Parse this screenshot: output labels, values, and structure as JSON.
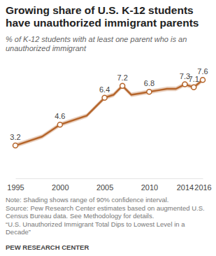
{
  "chart_data": {
    "type": "line",
    "title": "Growing share of U.S. K-12 students have unauthorized immigrant parents",
    "subtitle": "% of K-12 students with at least one parent who is an unauthorized immigrant",
    "notes": [
      "Note: Shading shows range of 90% confidence interval.",
      "Source: Pew Research Center estimates based on augmented U.S. Census Bureau data. See Methodology for details.",
      "“U.S. Unauthorized Immigrant Total Dips to Lowest Level in a Decade”"
    ],
    "credit": "PEW RESEARCH CENTER",
    "x": [
      1995,
      1998,
      2000,
      2003,
      2005,
      2006,
      2007,
      2008,
      2009,
      2010,
      2011,
      2012,
      2013,
      2014,
      2015,
      2016
    ],
    "xlim": [
      1995,
      2016
    ],
    "xticks": [
      1995,
      2000,
      2005,
      2010,
      2014,
      2016
    ],
    "ylim": [
      1,
      8.5
    ],
    "tick_labels": "x",
    "data_labels": true,
    "marker": "circle",
    "color": "#b5652b",
    "series": [
      {
        "color": "#b5652b",
        "values": [
          3.2,
          3.8,
          4.6,
          5.2,
          6.4,
          6.6,
          7.2,
          6.6,
          6.7,
          6.8,
          6.9,
          7.0,
          7.0,
          7.3,
          7.1,
          7.6
        ],
        "value_labels": [
          "3.2",
          null,
          "4.6",
          null,
          "6.4",
          null,
          "7.2",
          null,
          null,
          "6.8",
          null,
          null,
          null,
          "7.3",
          "7.1",
          "7.6"
        ],
        "ci_lower": [
          3.05,
          3.65,
          4.45,
          5.05,
          6.25,
          6.45,
          7.05,
          6.45,
          6.55,
          6.65,
          6.75,
          6.85,
          6.85,
          7.15,
          6.95,
          7.45
        ],
        "ci_upper": [
          3.35,
          3.95,
          4.75,
          5.35,
          6.55,
          6.75,
          7.35,
          6.75,
          6.85,
          6.95,
          7.05,
          7.15,
          7.15,
          7.45,
          7.25,
          7.75
        ]
      }
    ]
  }
}
